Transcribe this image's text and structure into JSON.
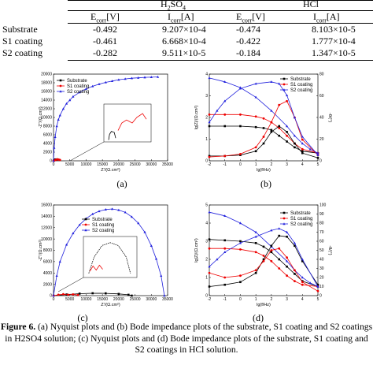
{
  "table": {
    "groups": [
      "H2SO4",
      "HCl"
    ],
    "col_headers": [
      "Ecorr[V]",
      "Icorr[A]",
      "Ecorr[V]",
      "Icorr[A]"
    ],
    "rows": [
      {
        "name": "Substrate",
        "h2so4_e": "-0.492",
        "h2so4_i": "9.207×10-4",
        "hcl_e": "-0.474",
        "hcl_i": "8.103×10-5"
      },
      {
        "name": "S1 coating",
        "h2so4_e": "-0.461",
        "h2so4_i": "6.668×10-4",
        "hcl_e": "-0.422",
        "hcl_i": "1.777×10-4"
      },
      {
        "name": "S2 coating",
        "h2so4_e": "-0.282",
        "h2so4_i": "9.511×10-5",
        "hcl_e": "-0.184",
        "hcl_i": "1.347×10-5"
      }
    ]
  },
  "panels": {
    "a": {
      "label": "(a)",
      "xlabel": "Z'/(Ω.cm²)",
      "ylabel": "-Z''/(Ω.cm²)",
      "xticks": [
        "0",
        "5000",
        "10000",
        "15000",
        "20000",
        "25000",
        "30000",
        "35000"
      ],
      "yticks": [
        "0",
        "2000",
        "4000",
        "6000",
        "8000",
        "10000",
        "12000",
        "14000",
        "16000",
        "18000",
        "20000"
      ],
      "legend": [
        "Substrate",
        "S1 coating",
        "S2 coating"
      ]
    },
    "b": {
      "label": "(b)",
      "xlabel": "lg(f/Hz)",
      "ylabel": "lg|Z|/(Ω.cm²)",
      "y2label": "-θ/(°)",
      "xticks": [
        "-2",
        "-1",
        "0",
        "1",
        "2",
        "3",
        "4",
        "5"
      ],
      "yticks": [
        "0",
        "1",
        "2",
        "3",
        "4"
      ],
      "y2ticks": [
        "0",
        "20",
        "40",
        "60",
        "80"
      ],
      "legend": [
        "Substrate",
        "S1 coating",
        "S2 coating"
      ]
    },
    "c": {
      "label": "(c)",
      "xlabel": "Z'/(Ω.cm²)",
      "ylabel": "-Z''/(Ω.cm²)",
      "xticks": [
        "0",
        "5000",
        "10000",
        "15000",
        "20000",
        "25000",
        "30000",
        "35000"
      ],
      "yticks": [
        "0",
        "2000",
        "4000",
        "6000",
        "8000",
        "10000",
        "12000",
        "14000",
        "16000"
      ],
      "legend": [
        "Substrate",
        "S1 coating",
        "S2 coating"
      ]
    },
    "d": {
      "label": "(d)",
      "xlabel": "lg(f/Hz)",
      "ylabel": "lg|Z|/(Ω.cm²)",
      "y2label": "-θ/(°)",
      "xticks": [
        "-2",
        "-1",
        "0",
        "1",
        "2",
        "3",
        "4",
        "5"
      ],
      "yticks": [
        "0",
        "1",
        "2",
        "3",
        "4",
        "5"
      ],
      "y2ticks": [
        "0",
        "10",
        "20",
        "30",
        "40",
        "50",
        "60",
        "70",
        "80",
        "90",
        "100"
      ],
      "legend": [
        "Substrate",
        "S1 coating",
        "S2 coating"
      ]
    }
  },
  "chart_data": [
    {
      "panel": "a",
      "type": "scatter",
      "title": "",
      "xlabel": "Z'/(Ω.cm²)",
      "ylabel": "-Z''/(Ω.cm²)",
      "xlim": [
        0,
        35000
      ],
      "ylim": [
        0,
        20000
      ],
      "legend_position": "top-left",
      "series": [
        {
          "name": "Substrate",
          "color": "#000000",
          "x": [
            0,
            150,
            300,
            500,
            700,
            900
          ],
          "y": [
            0,
            80,
            200,
            300,
            320,
            250
          ]
        },
        {
          "name": "S1 coating",
          "color": "#ee0000",
          "x": [
            0,
            400,
            800,
            1200,
            1600,
            2000
          ],
          "y": [
            0,
            120,
            250,
            350,
            300,
            200
          ]
        },
        {
          "name": "S2 coating",
          "color": "#2222dd",
          "x": [
            0,
            200,
            500,
            1000,
            1500,
            2000,
            3000,
            4000,
            5000,
            6000,
            8000,
            10000,
            12000,
            14000,
            16000,
            18000,
            20000,
            22000,
            24000,
            26000,
            28000,
            30000,
            32000
          ],
          "y": [
            0,
            3000,
            5500,
            8000,
            9500,
            10500,
            12000,
            13200,
            14000,
            14800,
            15800,
            16600,
            17200,
            17700,
            18100,
            18400,
            18700,
            18900,
            19050,
            19150,
            19250,
            19300,
            19350
          ]
        }
      ]
    },
    {
      "panel": "b",
      "type": "line",
      "title": "",
      "xlabel": "lg(f/Hz)",
      "ylabel": "lg|Z|/(Ω.cm²)",
      "y2label": "-θ/(°)",
      "xlim": [
        -2,
        5
      ],
      "ylim": [
        0,
        4.5
      ],
      "y2lim": [
        0,
        90
      ],
      "legend_position": "top-right",
      "series": [
        {
          "name": "Substrate",
          "axis": "left",
          "color": "#000000",
          "x": [
            -2,
            -1,
            0,
            1,
            1.5,
            2,
            2.5,
            3,
            3.5,
            4,
            5
          ],
          "y": [
            1.8,
            1.8,
            1.8,
            1.75,
            1.7,
            1.6,
            1.3,
            1.0,
            0.7,
            0.5,
            0.4
          ]
        },
        {
          "name": "S1 coating",
          "axis": "left",
          "color": "#ee0000",
          "x": [
            -2,
            -1,
            0,
            1,
            1.5,
            2,
            2.5,
            3,
            3.5,
            4,
            5
          ],
          "y": [
            2.4,
            2.4,
            2.4,
            2.3,
            2.2,
            2.0,
            1.7,
            1.3,
            0.9,
            0.6,
            0.4
          ]
        },
        {
          "name": "S2 coating",
          "axis": "left",
          "color": "#2222dd",
          "x": [
            -2,
            -1,
            0,
            1,
            2,
            3,
            3.5,
            4,
            4.5,
            5
          ],
          "y": [
            4.3,
            4.1,
            3.8,
            3.3,
            2.6,
            1.8,
            1.3,
            0.9,
            0.6,
            0.4
          ]
        },
        {
          "name": "Substrate",
          "axis": "right",
          "color": "#000000",
          "x": [
            -2,
            -1,
            0,
            1,
            1.5,
            2,
            2.5,
            3,
            3.5,
            4,
            5
          ],
          "y": [
            5,
            5,
            6,
            10,
            18,
            30,
            36,
            30,
            18,
            8,
            3
          ]
        },
        {
          "name": "S1 coating",
          "axis": "right",
          "color": "#ee0000",
          "x": [
            -2,
            -1,
            0,
            1,
            1.5,
            2,
            2.5,
            3,
            3.5,
            4,
            5
          ],
          "y": [
            4,
            5,
            7,
            14,
            25,
            40,
            58,
            62,
            45,
            22,
            6
          ]
        },
        {
          "name": "S2 coating",
          "axis": "right",
          "color": "#2222dd",
          "x": [
            -2,
            -1.5,
            -1,
            0,
            1,
            2,
            2.5,
            3,
            3.5,
            4,
            5
          ],
          "y": [
            40,
            52,
            62,
            75,
            80,
            82,
            80,
            68,
            45,
            25,
            6
          ]
        }
      ]
    },
    {
      "panel": "c",
      "type": "scatter",
      "title": "",
      "xlabel": "Z'/(Ω.cm²)",
      "ylabel": "-Z''/(Ω.cm²)",
      "xlim": [
        0,
        35000
      ],
      "ylim": [
        0,
        16000
      ],
      "legend_position": "top-right",
      "series": [
        {
          "name": "Substrate",
          "color": "#000000",
          "x": [
            0,
            4000,
            8000,
            12000,
            16000,
            20000,
            23000,
            24000
          ],
          "y": [
            0,
            200,
            350,
            420,
            400,
            300,
            150,
            0
          ]
        },
        {
          "name": "S1 coating",
          "color": "#ee0000",
          "x": [
            0,
            1500,
            3000,
            4500,
            6000,
            7500
          ],
          "y": [
            0,
            150,
            250,
            150,
            220,
            100
          ]
        },
        {
          "name": "S2 coating",
          "color": "#2222dd",
          "x": [
            0,
            1000,
            2000,
            4000,
            6000,
            8000,
            10000,
            12000,
            14000,
            16000,
            18000,
            20000,
            22000,
            24000,
            26000,
            28000,
            30000,
            31500,
            33000,
            34000
          ],
          "y": [
            0,
            3500,
            6000,
            9000,
            11000,
            12500,
            13600,
            14400,
            14900,
            15200,
            15300,
            15100,
            14700,
            13900,
            12800,
            11200,
            8800,
            6500,
            3500,
            0
          ]
        }
      ]
    },
    {
      "panel": "d",
      "type": "line",
      "title": "",
      "xlabel": "lg(f/Hz)",
      "ylabel": "lg|Z|/(Ω.cm²)",
      "y2label": "-θ/(°)",
      "xlim": [
        -2,
        5
      ],
      "ylim": [
        0,
        5
      ],
      "y2lim": [
        0,
        100
      ],
      "legend_position": "top-right",
      "series": [
        {
          "name": "Substrate",
          "axis": "left",
          "color": "#000000",
          "x": [
            -2,
            -1,
            0,
            1,
            1.5,
            2,
            2.5,
            3,
            3.5,
            4,
            5
          ],
          "y": [
            3.1,
            3.05,
            3.0,
            2.9,
            2.7,
            2.4,
            2.0,
            1.6,
            1.2,
            0.8,
            0.5
          ]
        },
        {
          "name": "S1 coating",
          "axis": "left",
          "color": "#ee0000",
          "x": [
            -2,
            -1,
            0,
            1,
            1.5,
            2,
            2.5,
            3,
            3.5,
            4,
            5
          ],
          "y": [
            2.6,
            2.6,
            2.55,
            2.4,
            2.2,
            1.9,
            1.5,
            1.1,
            0.8,
            0.6,
            0.5
          ]
        },
        {
          "name": "S2 coating",
          "axis": "left",
          "color": "#2222dd",
          "x": [
            -2,
            -1,
            0,
            1,
            2,
            3,
            3.5,
            4,
            4.5,
            5
          ],
          "y": [
            4.6,
            4.4,
            4.0,
            3.5,
            2.7,
            1.9,
            1.4,
            1.0,
            0.7,
            0.5
          ]
        },
        {
          "name": "Substrate",
          "axis": "right",
          "color": "#000000",
          "x": [
            -2,
            -1,
            0,
            1,
            1.5,
            2,
            2.5,
            3,
            3.5,
            4,
            5
          ],
          "y": [
            10,
            12,
            15,
            25,
            40,
            55,
            66,
            65,
            55,
            38,
            12
          ]
        },
        {
          "name": "S1 coating",
          "axis": "right",
          "color": "#ee0000",
          "x": [
            -2,
            -1,
            0,
            1,
            1.5,
            2,
            2.5,
            3,
            3.5,
            4,
            5
          ],
          "y": [
            25,
            20,
            22,
            28,
            38,
            50,
            52,
            42,
            28,
            15,
            5
          ]
        },
        {
          "name": "S2 coating",
          "axis": "right",
          "color": "#2222dd",
          "x": [
            -2,
            -1.5,
            -1,
            0,
            1,
            2,
            2.5,
            3,
            3.5,
            4,
            5
          ],
          "y": [
            32,
            40,
            48,
            58,
            65,
            72,
            74,
            70,
            58,
            40,
            10
          ]
        }
      ]
    }
  ],
  "caption": {
    "figure_label": "Figure 6.",
    "text": " (a) Nyquist plots and (b) Bode impedance plots of the substrate, S1 coating and S2 coatings in H2SO4 solution; (c) Nyquist plots and (d) Bode impedance plots of the substrate, S1 coating and S2 coatings in HCl solution."
  }
}
